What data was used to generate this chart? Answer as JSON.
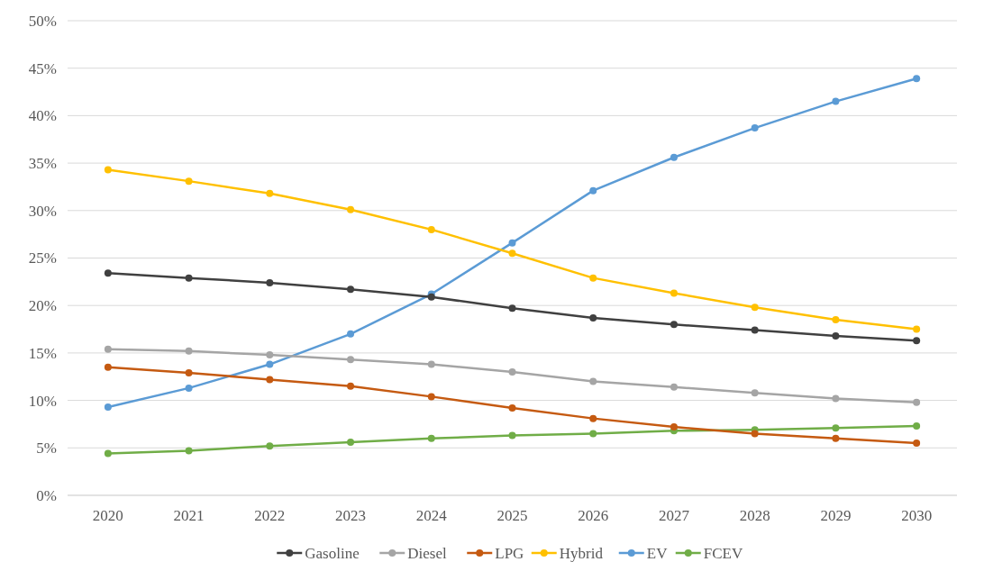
{
  "chart_data": {
    "type": "line",
    "categories": [
      "2020",
      "2021",
      "2022",
      "2023",
      "2024",
      "2025",
      "2026",
      "2027",
      "2028",
      "2029",
      "2030"
    ],
    "series": [
      {
        "name": "Gasoline",
        "color": "#404040",
        "values": [
          23.4,
          22.9,
          22.4,
          21.7,
          20.9,
          19.7,
          18.7,
          18.0,
          17.4,
          16.8,
          16.3
        ]
      },
      {
        "name": "Diesel",
        "color": "#a5a5a5",
        "values": [
          15.4,
          15.2,
          14.8,
          14.3,
          13.8,
          13.0,
          12.0,
          11.4,
          10.8,
          10.2,
          9.8
        ]
      },
      {
        "name": "LPG",
        "color": "#c55a11",
        "values": [
          13.5,
          12.9,
          12.2,
          11.5,
          10.4,
          9.2,
          8.1,
          7.2,
          6.5,
          6.0,
          5.5
        ]
      },
      {
        "name": "Hybrid",
        "color": "#ffc000",
        "values": [
          34.3,
          33.1,
          31.8,
          30.1,
          28.0,
          25.5,
          22.9,
          21.3,
          19.8,
          18.5,
          17.5
        ]
      },
      {
        "name": "EV",
        "color": "#5b9bd5",
        "values": [
          9.3,
          11.3,
          13.8,
          17.0,
          21.2,
          26.6,
          32.1,
          35.6,
          38.7,
          41.5,
          43.9
        ]
      },
      {
        "name": "FCEV",
        "color": "#70ad47",
        "values": [
          4.4,
          4.7,
          5.2,
          5.6,
          6.0,
          6.3,
          6.5,
          6.8,
          6.9,
          7.1,
          7.3
        ]
      }
    ],
    "ylim": [
      0,
      50
    ],
    "yticks": [
      {
        "value": 0,
        "label": "0%"
      },
      {
        "value": 5,
        "label": "5%"
      },
      {
        "value": 10,
        "label": "10%"
      },
      {
        "value": 15,
        "label": "15%"
      },
      {
        "value": 20,
        "label": "20%"
      },
      {
        "value": 25,
        "label": "25%"
      },
      {
        "value": 30,
        "label": "30%"
      },
      {
        "value": 35,
        "label": "35%"
      },
      {
        "value": 40,
        "label": "40%"
      },
      {
        "value": 45,
        "label": "45%"
      },
      {
        "value": 50,
        "label": "50%"
      }
    ],
    "grid": "y",
    "legend": "bottom",
    "marker": "circle",
    "line_style": "solid"
  }
}
